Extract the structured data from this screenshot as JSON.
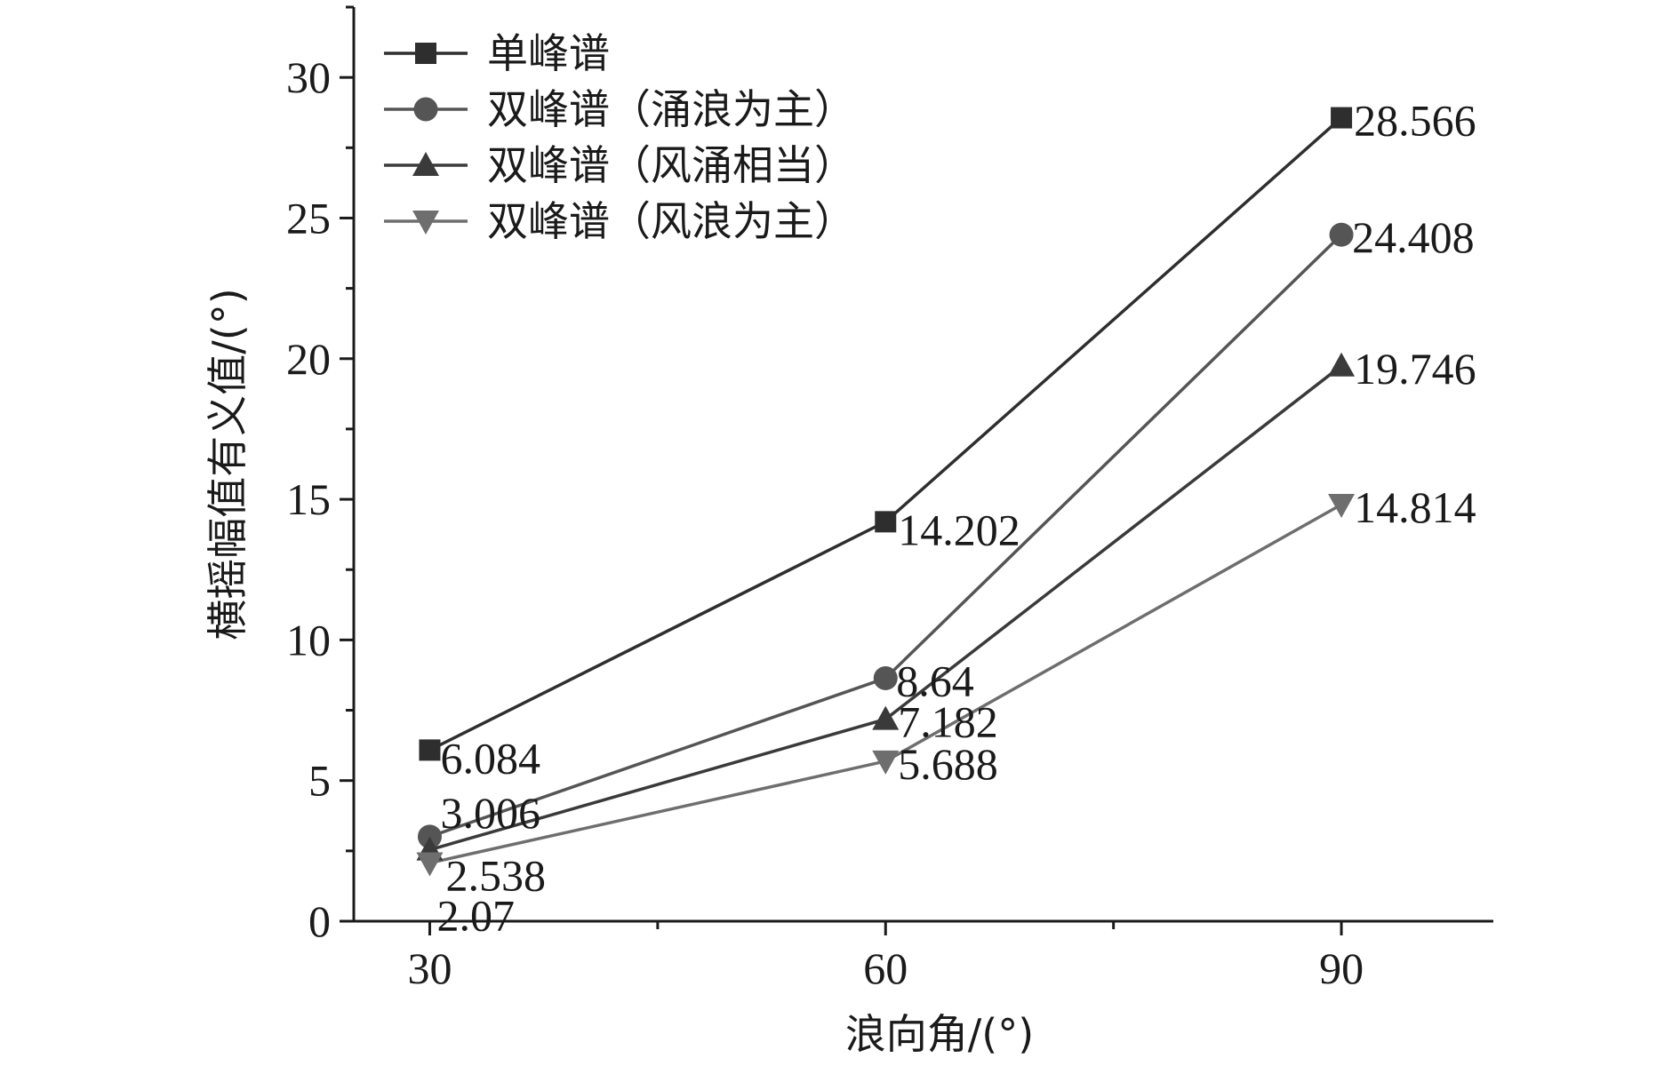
{
  "chart_data": {
    "type": "line",
    "title": "",
    "xlabel": "浪向角/(°)",
    "ylabel": "横摇幅值有义值/(°)",
    "x": [
      30,
      60,
      90
    ],
    "xlim": [
      25,
      100
    ],
    "ylim": [
      0,
      32.5
    ],
    "xticks": [
      30,
      60,
      90
    ],
    "yticks": [
      0,
      5,
      10,
      15,
      20,
      25,
      30
    ],
    "grid": false,
    "legend": "top-left",
    "series": [
      {
        "name": "单峰谱",
        "marker": "square",
        "color": "#2e2e2e",
        "values": [
          6.084,
          14.202,
          28.566
        ],
        "labels": [
          "6.084",
          "14.202",
          "28.566"
        ]
      },
      {
        "name": "双峰谱（涌浪为主）",
        "marker": "circle",
        "color": "#555555",
        "values": [
          3.006,
          8.64,
          24.408
        ],
        "labels": [
          "3.006",
          "8.64",
          "24.408"
        ]
      },
      {
        "name": "双峰谱（风涌相当）",
        "marker": "triangle-up",
        "color": "#3a3a3a",
        "values": [
          2.538,
          7.182,
          19.746
        ],
        "labels": [
          "2.538",
          "7.182",
          "19.746"
        ]
      },
      {
        "name": "双峰谱（风浪为主）",
        "marker": "triangle-down",
        "color": "#6e6e6e",
        "values": [
          2.07,
          5.688,
          14.814
        ],
        "labels": [
          "2.07",
          "5.688",
          "14.814"
        ]
      }
    ]
  }
}
